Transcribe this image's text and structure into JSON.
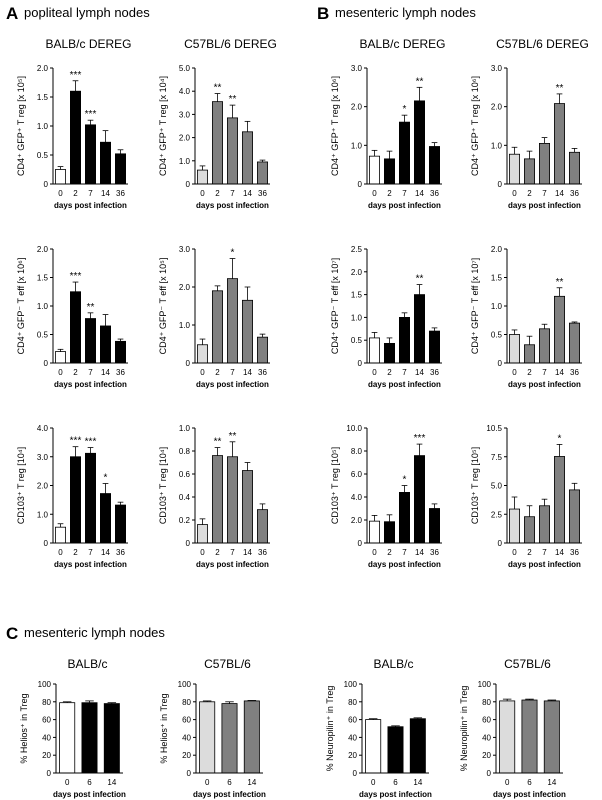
{
  "figure": {
    "panel_A": {
      "letter": "A",
      "title": "popliteal lymph nodes"
    },
    "panel_B": {
      "letter": "B",
      "title": "mesenteric lymph nodes"
    },
    "panel_C": {
      "letter": "C",
      "title": "mesenteric lymph nodes"
    }
  },
  "colors": {
    "white": "#ffffff",
    "black": "#000000",
    "lightgray": "#dcdcdc",
    "gray": "#808080"
  },
  "chart_data": [
    {
      "id": "A1",
      "type": "bar",
      "title": "BALB/c DEREG",
      "ylabel": "CD4⁺ GFP⁺ T reg [x 10⁵]",
      "xlabel": "days post infection",
      "categories": [
        "0",
        "2",
        "7",
        "14",
        "36"
      ],
      "values": [
        0.25,
        1.6,
        1.02,
        0.72,
        0.52
      ],
      "errors": [
        0.05,
        0.18,
        0.08,
        0.2,
        0.07
      ],
      "stars": [
        "",
        "***",
        "***",
        "",
        ""
      ],
      "ylim": [
        0,
        2.0
      ],
      "yticks": [
        "0",
        "0.5",
        "1.0",
        "1.5",
        "2.0"
      ],
      "fills": [
        "white",
        "black",
        "black",
        "black",
        "black"
      ]
    },
    {
      "id": "A2",
      "type": "bar",
      "title": "C57BL/6 DEREG",
      "ylabel": "CD4⁺ GFP⁺ T reg [x 10⁴]",
      "xlabel": "days post infection",
      "categories": [
        "0",
        "2",
        "7",
        "14",
        "36"
      ],
      "values": [
        0.6,
        3.55,
        2.85,
        2.25,
        0.95
      ],
      "errors": [
        0.18,
        0.35,
        0.55,
        0.45,
        0.08
      ],
      "stars": [
        "",
        "**",
        "**",
        "",
        ""
      ],
      "ylim": [
        0,
        5.0
      ],
      "yticks": [
        "0",
        "1.0",
        "2.0",
        "3.0",
        "4.0",
        "5.0"
      ],
      "fills": [
        "lightgray",
        "gray",
        "gray",
        "gray",
        "gray"
      ]
    },
    {
      "id": "B1",
      "type": "bar",
      "title": "BALB/c DEREG",
      "ylabel": "CD4⁺ GFP⁺ T reg [x 10⁶]",
      "xlabel": "days post infection",
      "categories": [
        "0",
        "2",
        "7",
        "14",
        "36"
      ],
      "values": [
        0.72,
        0.65,
        1.6,
        2.15,
        0.97
      ],
      "errors": [
        0.15,
        0.2,
        0.18,
        0.35,
        0.1
      ],
      "stars": [
        "",
        "",
        "*",
        "**",
        ""
      ],
      "ylim": [
        0,
        3.0
      ],
      "yticks": [
        "0",
        "1.0",
        "2.0",
        "3.0"
      ],
      "fills": [
        "white",
        "black",
        "black",
        "black",
        "black"
      ]
    },
    {
      "id": "B2",
      "type": "bar",
      "title": "C57BL/6 DEREG",
      "ylabel": "CD4⁺ GFP⁺ T reg [x 10⁶]",
      "xlabel": "days post infection",
      "categories": [
        "0",
        "2",
        "7",
        "14",
        "36"
      ],
      "values": [
        0.77,
        0.65,
        1.05,
        2.08,
        0.82
      ],
      "errors": [
        0.18,
        0.2,
        0.15,
        0.25,
        0.1
      ],
      "stars": [
        "",
        "",
        "",
        "**",
        ""
      ],
      "ylim": [
        0,
        3.0
      ],
      "yticks": [
        "0",
        "1.0",
        "2.0",
        "3.0"
      ],
      "fills": [
        "lightgray",
        "gray",
        "gray",
        "gray",
        "gray"
      ]
    },
    {
      "id": "A3",
      "type": "bar",
      "title": "",
      "ylabel": "CD4⁺ GFP⁻ T eff [x 10⁶]",
      "xlabel": "days post infection",
      "categories": [
        "0",
        "2",
        "7",
        "14",
        "36"
      ],
      "values": [
        0.2,
        1.25,
        0.78,
        0.65,
        0.38
      ],
      "errors": [
        0.04,
        0.17,
        0.1,
        0.2,
        0.04
      ],
      "stars": [
        "",
        "***",
        "**",
        "",
        ""
      ],
      "ylim": [
        0,
        2.0
      ],
      "yticks": [
        "0",
        "0.5",
        "1.0",
        "1.5",
        "2.0"
      ],
      "fills": [
        "white",
        "black",
        "black",
        "black",
        "black"
      ]
    },
    {
      "id": "A4",
      "type": "bar",
      "title": "",
      "ylabel": "CD4⁺ GFP⁻ T eff [x 10⁵]",
      "xlabel": "days post infection",
      "categories": [
        "0",
        "2",
        "7",
        "14",
        "36"
      ],
      "values": [
        0.48,
        1.9,
        2.22,
        1.65,
        0.68
      ],
      "errors": [
        0.15,
        0.13,
        0.53,
        0.35,
        0.08
      ],
      "stars": [
        "",
        "",
        "*",
        "",
        ""
      ],
      "ylim": [
        0,
        3.0
      ],
      "yticks": [
        "0",
        "1.0",
        "2.0",
        "3.0"
      ],
      "fills": [
        "lightgray",
        "gray",
        "gray",
        "gray",
        "gray"
      ]
    },
    {
      "id": "B3",
      "type": "bar",
      "title": "",
      "ylabel": "CD4⁺ GFP⁻ T eff [x 10⁷]",
      "xlabel": "days post infection",
      "categories": [
        "0",
        "2",
        "7",
        "14",
        "36"
      ],
      "values": [
        0.55,
        0.43,
        1.0,
        1.5,
        0.7
      ],
      "errors": [
        0.12,
        0.12,
        0.1,
        0.22,
        0.07
      ],
      "stars": [
        "",
        "",
        "",
        "**",
        ""
      ],
      "ylim": [
        0,
        2.5
      ],
      "yticks": [
        "0",
        "0.5",
        "1.0",
        "1.5",
        "2.0",
        "2.5"
      ],
      "fills": [
        "white",
        "black",
        "black",
        "black",
        "black"
      ]
    },
    {
      "id": "B4",
      "type": "bar",
      "title": "",
      "ylabel": "CD4⁺ GFP⁻ T eff [x 10⁷]",
      "xlabel": "days post infection",
      "categories": [
        "0",
        "2",
        "7",
        "14",
        "36"
      ],
      "values": [
        0.5,
        0.32,
        0.6,
        1.17,
        0.7
      ],
      "errors": [
        0.08,
        0.15,
        0.08,
        0.15,
        0.02
      ],
      "stars": [
        "",
        "",
        "",
        "**",
        ""
      ],
      "ylim": [
        0,
        2.0
      ],
      "yticks": [
        "0",
        "0.5",
        "1.0",
        "1.5",
        "2.0"
      ],
      "fills": [
        "lightgray",
        "gray",
        "gray",
        "gray",
        "gray"
      ]
    },
    {
      "id": "A5",
      "type": "bar",
      "title": "",
      "ylabel": "CD103⁺ T reg [10⁴]",
      "xlabel": "days post infection",
      "categories": [
        "0",
        "2",
        "7",
        "14",
        "36"
      ],
      "values": [
        0.55,
        3.0,
        3.12,
        1.72,
        1.32
      ],
      "errors": [
        0.12,
        0.35,
        0.2,
        0.35,
        0.1
      ],
      "stars": [
        "",
        "***",
        "***",
        "*",
        ""
      ],
      "ylim": [
        0,
        4.0
      ],
      "yticks": [
        "0",
        "1.0",
        "2.0",
        "3.0",
        "4.0"
      ],
      "fills": [
        "white",
        "black",
        "black",
        "black",
        "black"
      ]
    },
    {
      "id": "A6",
      "type": "bar",
      "title": "",
      "ylabel": "CD103⁺ T reg [10⁴]",
      "xlabel": "days post infection",
      "categories": [
        "0",
        "2",
        "7",
        "14",
        "36"
      ],
      "values": [
        0.16,
        0.76,
        0.75,
        0.63,
        0.29
      ],
      "errors": [
        0.05,
        0.07,
        0.13,
        0.07,
        0.05
      ],
      "stars": [
        "",
        "**",
        "**",
        "",
        ""
      ],
      "ylim": [
        0,
        1.0
      ],
      "yticks": [
        "0",
        "0.2",
        "0.4",
        "0.6",
        "0.8",
        "1.0"
      ],
      "fills": [
        "lightgray",
        "gray",
        "gray",
        "gray",
        "gray"
      ]
    },
    {
      "id": "B5",
      "type": "bar",
      "title": "",
      "ylabel": "CD103⁺ T reg [10⁵]",
      "xlabel": "days post infection",
      "categories": [
        "0",
        "2",
        "7",
        "14",
        "36"
      ],
      "values": [
        1.9,
        1.85,
        4.4,
        7.6,
        3.0
      ],
      "errors": [
        0.5,
        0.6,
        0.6,
        1.0,
        0.4
      ],
      "stars": [
        "",
        "",
        "*",
        "***",
        ""
      ],
      "ylim": [
        0,
        10.0
      ],
      "yticks": [
        "0",
        "2.0",
        "4.0",
        "6.0",
        "8.0",
        "10.0"
      ],
      "fills": [
        "white",
        "black",
        "black",
        "black",
        "black"
      ]
    },
    {
      "id": "B6",
      "type": "bar",
      "title": "",
      "ylabel": "CD103⁺ T reg [10⁵]",
      "xlabel": "days post infection",
      "categories": [
        "0",
        "2",
        "7",
        "14",
        "36"
      ],
      "values": [
        3.1,
        2.4,
        3.4,
        7.9,
        4.85
      ],
      "errors": [
        1.1,
        1.0,
        0.6,
        1.1,
        0.6
      ],
      "stars": [
        "",
        "",
        "",
        "*",
        ""
      ],
      "ylim": [
        0,
        10.5
      ],
      "yticks": [
        "0",
        "2.5",
        "5.0",
        "7.5",
        "10.5"
      ],
      "fills": [
        "lightgray",
        "gray",
        "gray",
        "gray",
        "gray"
      ]
    },
    {
      "id": "C1",
      "type": "bar",
      "title": "BALB/c",
      "ylabel": "% Helios⁺ in Treg",
      "xlabel": "days post infection",
      "categories": [
        "0",
        "6",
        "14"
      ],
      "values": [
        79,
        79,
        78
      ],
      "errors": [
        1,
        2,
        1
      ],
      "stars": [
        "",
        "",
        ""
      ],
      "ylim": [
        0,
        100
      ],
      "yticks": [
        "0",
        "20",
        "40",
        "60",
        "80",
        "100"
      ],
      "fills": [
        "white",
        "black",
        "black"
      ]
    },
    {
      "id": "C2",
      "type": "bar",
      "title": "C57BL/6",
      "ylabel": "% Helios⁺ in Treg",
      "xlabel": "days post infection",
      "categories": [
        "0",
        "6",
        "14"
      ],
      "values": [
        80,
        78,
        81
      ],
      "errors": [
        1,
        2,
        0.5
      ],
      "stars": [
        "",
        "",
        ""
      ],
      "ylim": [
        0,
        100
      ],
      "yticks": [
        "0",
        "20",
        "40",
        "60",
        "80",
        "100"
      ],
      "fills": [
        "lightgray",
        "gray",
        "gray"
      ]
    },
    {
      "id": "C3",
      "type": "bar",
      "title": "BALB/c",
      "ylabel": "% Neuropilin⁺ in Treg",
      "xlabel": "days post infection",
      "categories": [
        "0",
        "6",
        "14"
      ],
      "values": [
        60,
        52,
        61
      ],
      "errors": [
        1,
        1,
        1
      ],
      "stars": [
        "",
        "",
        ""
      ],
      "ylim": [
        0,
        100
      ],
      "yticks": [
        "0",
        "20",
        "40",
        "60",
        "80",
        "100"
      ],
      "fills": [
        "white",
        "black",
        "black"
      ]
    },
    {
      "id": "C4",
      "type": "bar",
      "title": "C57BL/6",
      "ylabel": "% Neuropilin⁺ in Treg",
      "xlabel": "days post infection",
      "categories": [
        "0",
        "6",
        "14"
      ],
      "values": [
        81,
        82,
        81
      ],
      "errors": [
        2,
        1,
        1
      ],
      "stars": [
        "",
        "",
        ""
      ],
      "ylim": [
        0,
        100
      ],
      "yticks": [
        "0",
        "20",
        "40",
        "60",
        "80",
        "100"
      ],
      "fills": [
        "lightgray",
        "gray",
        "gray"
      ]
    }
  ]
}
